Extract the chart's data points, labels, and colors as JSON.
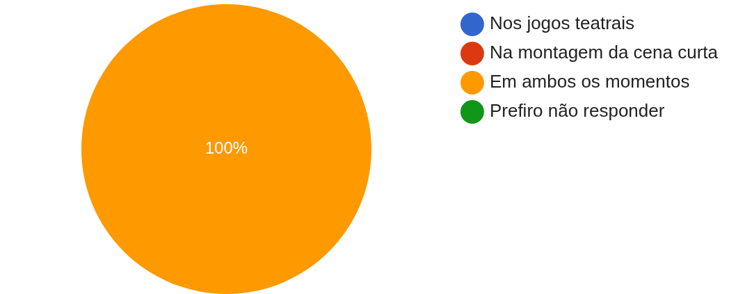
{
  "chart_data": {
    "type": "pie",
    "categories": [
      "Nos jogos teatrais",
      "Na montagem da cena curta",
      "Em ambos os momentos",
      "Prefiro não responder"
    ],
    "values": [
      0,
      0,
      100,
      0
    ],
    "colors": [
      "#3366cc",
      "#dc3912",
      "#ff9900",
      "#109618"
    ],
    "value_labels": [
      null,
      null,
      "100%",
      null
    ],
    "legend": "top right"
  }
}
